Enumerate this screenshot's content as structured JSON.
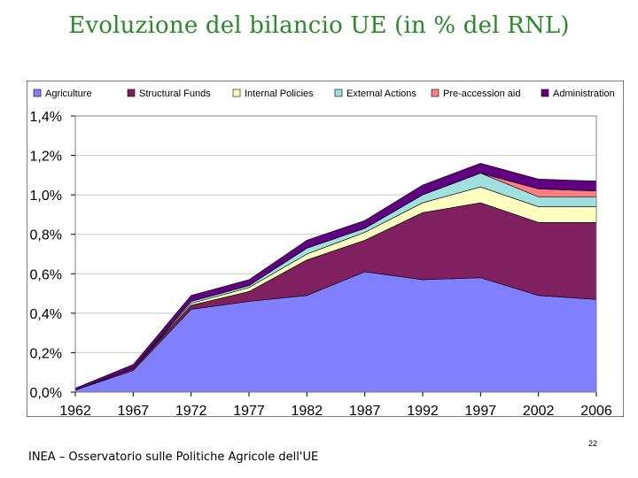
{
  "slide": {
    "title": "Evoluzione del bilancio UE (in % del RNL)",
    "footer": "INEA – Osservatorio sulle Politiche Agricole dell'UE",
    "page_number": "22"
  },
  "chart_data": {
    "type": "area",
    "stacked": true,
    "categories": [
      "1962",
      "1967",
      "1972",
      "1977",
      "1982",
      "1987",
      "1992",
      "1997",
      "2002",
      "2006"
    ],
    "ylim": [
      0,
      1.4
    ],
    "yticks": [
      0,
      0.2,
      0.4,
      0.6,
      0.8,
      1.0,
      1.2,
      1.4
    ],
    "ytick_labels": [
      "0,0%",
      "0,2%",
      "0,4%",
      "0,6%",
      "0,8%",
      "1,0%",
      "1,2%",
      "1,4%"
    ],
    "grid": true,
    "legend_position": "top",
    "series": [
      {
        "name": "Agriculture",
        "color": "#8080ff",
        "values": [
          0.01,
          0.11,
          0.42,
          0.46,
          0.49,
          0.61,
          0.57,
          0.58,
          0.49,
          0.47
        ]
      },
      {
        "name": "Structural Funds",
        "color": "#802060",
        "values": [
          0.0,
          0.01,
          0.02,
          0.05,
          0.18,
          0.16,
          0.34,
          0.38,
          0.37,
          0.39
        ]
      },
      {
        "name": "Internal Policies",
        "color": "#ffffc0",
        "values": [
          0.0,
          0.0,
          0.01,
          0.02,
          0.03,
          0.04,
          0.05,
          0.08,
          0.08,
          0.08
        ]
      },
      {
        "name": "External Actions",
        "color": "#a0e0e0",
        "values": [
          0.0,
          0.0,
          0.01,
          0.01,
          0.03,
          0.02,
          0.04,
          0.07,
          0.05,
          0.05
        ]
      },
      {
        "name": "Pre-accession aid",
        "color": "#ff8080",
        "values": [
          0.0,
          0.0,
          0.0,
          0.0,
          0.0,
          0.0,
          0.0,
          0.0,
          0.04,
          0.03
        ]
      },
      {
        "name": "Administration",
        "color": "#600080",
        "values": [
          0.01,
          0.02,
          0.03,
          0.03,
          0.04,
          0.04,
          0.05,
          0.05,
          0.05,
          0.05
        ]
      }
    ]
  }
}
